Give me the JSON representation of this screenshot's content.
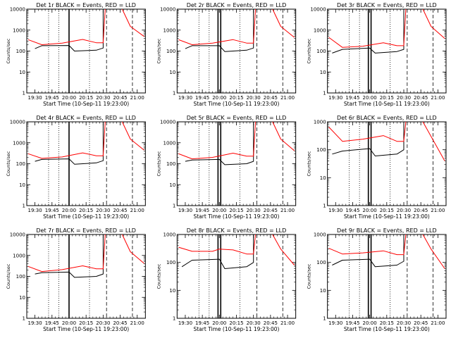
{
  "figure": {
    "background": "#ffffff"
  },
  "chart_data": [
    {
      "type": "line",
      "title": "Det 1r BLACK = Events, RED = LLD",
      "xlabel": "Start Time (10-Sep-11 19:23:00)",
      "ylabel": "Counts/sec",
      "yscale": "log",
      "ylim": [
        1,
        10000
      ],
      "yticks": [
        "1",
        "10",
        "100",
        "1000",
        "10000"
      ],
      "xticks": [
        "19:30",
        "19:45",
        "20:00",
        "20:15",
        "20:30",
        "20:45",
        "21:00"
      ],
      "grid": false,
      "legend": "none",
      "series": [
        {
          "color": "#000000",
          "points": [
            [
              19.5,
              130
            ],
            [
              19.6,
              180
            ],
            [
              20.0,
              185
            ],
            [
              20.08,
              100
            ],
            [
              20.4,
              110
            ],
            [
              20.5,
              140
            ],
            [
              20.5,
              10000
            ]
          ]
        },
        {
          "color": "#ff0000",
          "points": [
            [
              19.4,
              350
            ],
            [
              19.6,
              200
            ],
            [
              19.9,
              240
            ],
            [
              20.2,
              360
            ],
            [
              20.4,
              250
            ],
            [
              20.5,
              250
            ],
            [
              20.53,
              10000
            ]
          ]
        },
        {
          "color": "#ff0000",
          "points": [
            [
              20.78,
              10000
            ],
            [
              20.9,
              1500
            ],
            [
              21.1,
              500
            ]
          ]
        }
      ],
      "markers": {
        "dotted": [
          19.7,
          19.85,
          20.3
        ],
        "solid": [
          20.0
        ],
        "dashed": [
          20.55,
          20.93
        ]
      }
    },
    {
      "type": "line",
      "title": "Det 2r BLACK = Events, RED = LLD",
      "xlabel": "Start Time (10-Sep-11 19:23:00)",
      "ylabel": "Counts/sec",
      "yscale": "log",
      "ylim": [
        1,
        10000
      ],
      "yticks": [
        "1",
        "10",
        "100",
        "1000",
        "10000"
      ],
      "xticks": [
        "19:30",
        "19:45",
        "20:00",
        "20:15",
        "20:30",
        "20:45",
        "21:00"
      ],
      "grid": false,
      "legend": "none",
      "series": [
        {
          "color": "#000000",
          "points": [
            [
              19.5,
              130
            ],
            [
              19.6,
              180
            ],
            [
              20.0,
              180
            ],
            [
              20.08,
              95
            ],
            [
              20.4,
              110
            ],
            [
              20.5,
              140
            ],
            [
              20.5,
              10000
            ]
          ]
        },
        {
          "color": "#ff0000",
          "points": [
            [
              19.4,
              350
            ],
            [
              19.6,
              200
            ],
            [
              19.9,
              240
            ],
            [
              20.2,
              350
            ],
            [
              20.4,
              240
            ],
            [
              20.5,
              240
            ],
            [
              20.53,
              10000
            ]
          ]
        },
        {
          "color": "#ff0000",
          "points": [
            [
              20.78,
              10000
            ],
            [
              20.9,
              1500
            ],
            [
              21.1,
              450
            ]
          ]
        }
      ],
      "markers": {
        "dotted": [
          19.7,
          19.85,
          20.3
        ],
        "solid": [
          19.98,
          20.02
        ],
        "dashed": [
          20.55,
          20.93
        ]
      }
    },
    {
      "type": "line",
      "title": "Det 3r BLACK = Events, RED = LLD",
      "xlabel": "Start Time (10-Sep-11 19:23:00)",
      "ylabel": "Counts/sec",
      "yscale": "log",
      "ylim": [
        1,
        10000
      ],
      "yticks": [
        "1",
        "10",
        "100",
        "1000",
        "10000"
      ],
      "xticks": [
        "19:30",
        "19:45",
        "20:00",
        "20:15",
        "20:30",
        "20:45",
        "21:00"
      ],
      "grid": false,
      "legend": "none",
      "series": [
        {
          "color": "#000000",
          "points": [
            [
              19.45,
              80
            ],
            [
              19.6,
              120
            ],
            [
              20.0,
              140
            ],
            [
              20.08,
              80
            ],
            [
              20.4,
              95
            ],
            [
              20.5,
              120
            ],
            [
              20.5,
              10000
            ]
          ]
        },
        {
          "color": "#ff0000",
          "points": [
            [
              19.4,
              450
            ],
            [
              19.6,
              150
            ],
            [
              19.9,
              170
            ],
            [
              20.2,
              250
            ],
            [
              20.4,
              180
            ],
            [
              20.5,
              180
            ],
            [
              20.53,
              10000
            ]
          ]
        },
        {
          "color": "#ff0000",
          "points": [
            [
              20.78,
              10000
            ],
            [
              20.9,
              1500
            ],
            [
              21.1,
              400
            ]
          ]
        }
      ],
      "markers": {
        "dotted": [
          19.7,
          19.85,
          20.3
        ],
        "solid": [
          19.98,
          20.02
        ],
        "dashed": [
          20.55,
          20.93
        ]
      }
    },
    {
      "type": "line",
      "title": "Det 4r BLACK = Events, RED = LLD",
      "xlabel": "Start Time (10-Sep-11 19:23:00)",
      "ylabel": "Counts/sec",
      "yscale": "log",
      "ylim": [
        1,
        10000
      ],
      "yticks": [
        "1",
        "10",
        "100",
        "1000",
        "10000"
      ],
      "xticks": [
        "19:30",
        "19:45",
        "20:00",
        "20:15",
        "20:30",
        "20:45",
        "21:00"
      ],
      "grid": false,
      "legend": "none",
      "series": [
        {
          "color": "#000000",
          "points": [
            [
              19.5,
              130
            ],
            [
              19.6,
              160
            ],
            [
              20.0,
              170
            ],
            [
              20.08,
              95
            ],
            [
              20.4,
              110
            ],
            [
              20.5,
              140
            ],
            [
              20.5,
              10000
            ]
          ]
        },
        {
          "color": "#ff0000",
          "points": [
            [
              19.4,
              300
            ],
            [
              19.6,
              180
            ],
            [
              19.9,
              210
            ],
            [
              20.2,
              330
            ],
            [
              20.4,
              240
            ],
            [
              20.5,
              240
            ],
            [
              20.53,
              10000
            ]
          ]
        },
        {
          "color": "#ff0000",
          "points": [
            [
              20.78,
              10000
            ],
            [
              20.9,
              1500
            ],
            [
              21.1,
              450
            ]
          ]
        }
      ],
      "markers": {
        "dotted": [
          19.7,
          19.85,
          20.3
        ],
        "solid": [
          20.0
        ],
        "dashed": [
          20.55,
          20.93
        ]
      }
    },
    {
      "type": "line",
      "title": "Det 5r BLACK = Events, RED = LLD",
      "xlabel": "Start Time (10-Sep-11 19:23:00)",
      "ylabel": "Counts/sec",
      "yscale": "log",
      "ylim": [
        1,
        10000
      ],
      "yticks": [
        "1",
        "10",
        "100",
        "1000",
        "10000"
      ],
      "xticks": [
        "19:30",
        "19:45",
        "20:00",
        "20:15",
        "20:30",
        "20:45",
        "21:00"
      ],
      "grid": false,
      "legend": "none",
      "series": [
        {
          "color": "#000000",
          "points": [
            [
              19.5,
              130
            ],
            [
              19.6,
              150
            ],
            [
              20.0,
              160
            ],
            [
              20.08,
              90
            ],
            [
              20.4,
              100
            ],
            [
              20.5,
              130
            ],
            [
              20.5,
              10000
            ]
          ]
        },
        {
          "color": "#ff0000",
          "points": [
            [
              19.4,
              300
            ],
            [
              19.6,
              170
            ],
            [
              19.9,
              200
            ],
            [
              20.2,
              320
            ],
            [
              20.4,
              230
            ],
            [
              20.5,
              230
            ],
            [
              20.53,
              10000
            ]
          ]
        },
        {
          "color": "#ff0000",
          "points": [
            [
              20.78,
              10000
            ],
            [
              20.9,
              1500
            ],
            [
              21.1,
              420
            ]
          ]
        }
      ],
      "markers": {
        "dotted": [
          19.7,
          19.85,
          20.3
        ],
        "solid": [
          19.98,
          20.02
        ],
        "dashed": [
          20.55,
          20.93
        ]
      }
    },
    {
      "type": "line",
      "title": "Det 6r BLACK = Events, RED = LLD",
      "xlabel": "Start Time (10-Sep-11 19:23:00)",
      "ylabel": "Counts/sec",
      "yscale": "log",
      "ylim": [
        1,
        1000
      ],
      "yticks": [
        "1",
        "10",
        "100",
        "1000"
      ],
      "xticks": [
        "19:30",
        "19:45",
        "20:00",
        "20:15",
        "20:30",
        "20:45",
        "21:00"
      ],
      "grid": false,
      "legend": "none",
      "series": [
        {
          "color": "#000000",
          "points": [
            [
              19.45,
              70
            ],
            [
              19.6,
              90
            ],
            [
              20.0,
              110
            ],
            [
              20.08,
              60
            ],
            [
              20.4,
              70
            ],
            [
              20.5,
              100
            ],
            [
              20.5,
              1000
            ]
          ]
        },
        {
          "color": "#ff0000",
          "points": [
            [
              19.4,
              650
            ],
            [
              19.6,
              200
            ],
            [
              19.9,
              240
            ],
            [
              20.2,
              320
            ],
            [
              20.4,
              200
            ],
            [
              20.5,
              200
            ],
            [
              20.53,
              1000
            ]
          ]
        },
        {
          "color": "#ff0000",
          "points": [
            [
              20.78,
              1000
            ],
            [
              20.9,
              300
            ],
            [
              21.1,
              40
            ]
          ]
        }
      ],
      "markers": {
        "dotted": [
          19.7,
          19.85,
          20.3
        ],
        "solid": [
          19.98,
          20.02
        ],
        "dashed": [
          20.55,
          20.93
        ]
      }
    },
    {
      "type": "line",
      "title": "Det 7r BLACK = Events, RED = LLD",
      "xlabel": "Start Time (10-Sep-11 19:23:00)",
      "ylabel": "Counts/sec",
      "yscale": "log",
      "ylim": [
        1,
        10000
      ],
      "yticks": [
        "1",
        "10",
        "100",
        "1000",
        "10000"
      ],
      "xticks": [
        "19:30",
        "19:45",
        "20:00",
        "20:15",
        "20:30",
        "20:45",
        "21:00"
      ],
      "grid": false,
      "legend": "none",
      "series": [
        {
          "color": "#000000",
          "points": [
            [
              19.5,
              130
            ],
            [
              19.6,
              150
            ],
            [
              20.0,
              160
            ],
            [
              20.08,
              90
            ],
            [
              20.4,
              100
            ],
            [
              20.5,
              130
            ],
            [
              20.5,
              10000
            ]
          ]
        },
        {
          "color": "#ff0000",
          "points": [
            [
              19.4,
              300
            ],
            [
              19.6,
              170
            ],
            [
              19.9,
              210
            ],
            [
              20.2,
              320
            ],
            [
              20.4,
              230
            ],
            [
              20.5,
              230
            ],
            [
              20.53,
              10000
            ]
          ]
        },
        {
          "color": "#ff0000",
          "points": [
            [
              20.78,
              10000
            ],
            [
              20.9,
              1500
            ],
            [
              21.1,
              420
            ]
          ]
        }
      ],
      "markers": {
        "dotted": [
          19.7,
          19.85,
          20.3
        ],
        "solid": [
          20.0
        ],
        "dashed": [
          20.55,
          20.93
        ]
      }
    },
    {
      "type": "line",
      "title": "Det 8r BLACK = Events, RED = LLD",
      "xlabel": "Start Time (10-Sep-11 19:23:00)",
      "ylabel": "Counts/sec",
      "yscale": "log",
      "ylim": [
        1,
        1000
      ],
      "yticks": [
        "1",
        "10",
        "100",
        "1000"
      ],
      "xticks": [
        "19:30",
        "19:45",
        "20:00",
        "20:15",
        "20:30",
        "20:45",
        "21:00"
      ],
      "grid": false,
      "legend": "none",
      "series": [
        {
          "color": "#000000",
          "points": [
            [
              19.45,
              70
            ],
            [
              19.6,
              120
            ],
            [
              20.0,
              130
            ],
            [
              20.08,
              60
            ],
            [
              20.4,
              70
            ],
            [
              20.5,
              100
            ],
            [
              20.5,
              1000
            ]
          ]
        },
        {
          "color": "#ff0000",
          "points": [
            [
              19.4,
              350
            ],
            [
              19.6,
              250
            ],
            [
              19.9,
              250
            ],
            [
              20.0,
              300
            ],
            [
              20.2,
              280
            ],
            [
              20.4,
              200
            ],
            [
              20.5,
              200
            ],
            [
              20.53,
              1000
            ]
          ]
        },
        {
          "color": "#ff0000",
          "points": [
            [
              20.78,
              1000
            ],
            [
              20.9,
              300
            ],
            [
              21.1,
              80
            ]
          ]
        }
      ],
      "markers": {
        "dotted": [
          19.7,
          19.85,
          20.3
        ],
        "solid": [
          19.98,
          20.02
        ],
        "dashed": [
          20.55,
          20.93
        ]
      }
    },
    {
      "type": "line",
      "title": "Det 9r BLACK = Events, RED = LLD",
      "xlabel": "Start Time (10-Sep-11 19:23:00)",
      "ylabel": "Counts/sec",
      "yscale": "log",
      "ylim": [
        1,
        1000
      ],
      "yticks": [
        "1",
        "10",
        "100",
        "1000"
      ],
      "xticks": [
        "19:30",
        "19:45",
        "20:00",
        "20:15",
        "20:30",
        "20:45",
        "21:00"
      ],
      "grid": false,
      "legend": "none",
      "series": [
        {
          "color": "#000000",
          "points": [
            [
              19.45,
              80
            ],
            [
              19.6,
              120
            ],
            [
              20.0,
              130
            ],
            [
              20.08,
              70
            ],
            [
              20.4,
              80
            ],
            [
              20.5,
              110
            ],
            [
              20.5,
              1000
            ]
          ]
        },
        {
          "color": "#ff0000",
          "points": [
            [
              19.4,
              320
            ],
            [
              19.6,
              200
            ],
            [
              19.9,
              220
            ],
            [
              20.2,
              260
            ],
            [
              20.4,
              190
            ],
            [
              20.5,
              190
            ],
            [
              20.53,
              1000
            ]
          ]
        },
        {
          "color": "#ff0000",
          "points": [
            [
              20.78,
              1000
            ],
            [
              20.9,
              300
            ],
            [
              21.1,
              60
            ]
          ]
        }
      ],
      "markers": {
        "dotted": [
          19.7,
          19.85,
          20.3
        ],
        "solid": [
          19.98,
          20.02
        ],
        "dashed": [
          20.55,
          20.93
        ]
      }
    }
  ]
}
